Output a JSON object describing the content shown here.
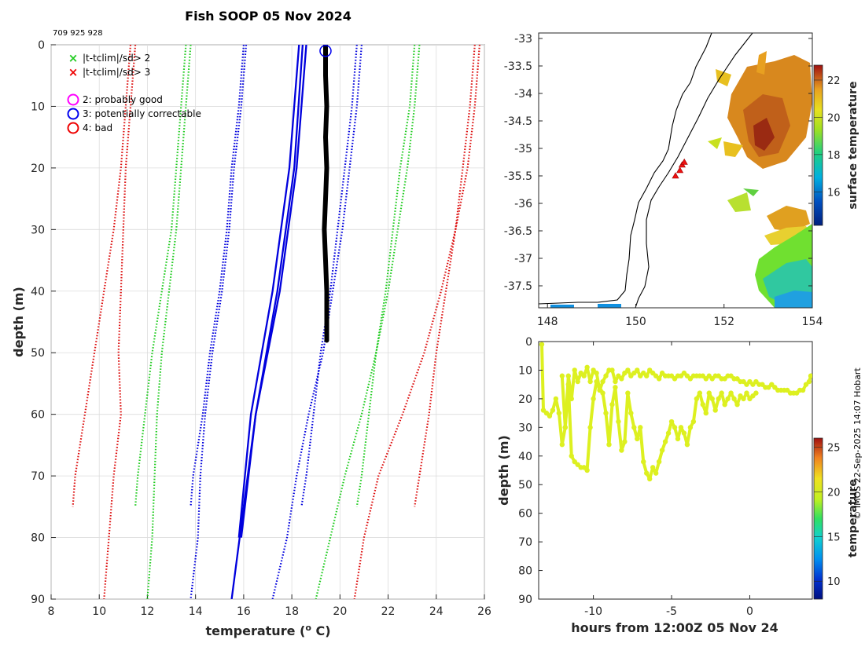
{
  "title": "Fish SOOP 05 Nov 2024",
  "ids": "709 925 928",
  "credit": "© IMOS 22-Sep-2025 14:07 Hobart",
  "legend": [
    {
      "symbol": "x",
      "color": "#22cc22",
      "label": "|t-tclim|/sd> 2"
    },
    {
      "symbol": "x",
      "color": "#ee0000",
      "label": "|t-tclim|/sd> 3"
    },
    {
      "symbol": "o",
      "color": "#ff00ff",
      "label": "2: probably good"
    },
    {
      "symbol": "o",
      "color": "#0000ee",
      "label": "3: potentially correctable"
    },
    {
      "symbol": "o",
      "color": "#ee0000",
      "label": "4: bad"
    }
  ],
  "chart_data": [
    {
      "id": "profile",
      "type": "line",
      "title": "Fish SOOP 05 Nov 2024",
      "xlabel": "temperature (",
      "xlabel_sup": "o",
      "xlabel_end": " C)",
      "ylabel": "depth (m)",
      "xlim": [
        8,
        26
      ],
      "ylim": [
        0,
        90
      ],
      "yreversed": true,
      "xticks": [
        8,
        10,
        12,
        14,
        16,
        18,
        20,
        22,
        24,
        26
      ],
      "yticks": [
        0,
        10,
        20,
        30,
        40,
        50,
        60,
        70,
        80,
        90
      ],
      "series": [
        {
          "name": "clim mean",
          "style": "solid",
          "color": "#0000dd",
          "depth": [
            0,
            20,
            40,
            60,
            80
          ],
          "temp": [
            18.3,
            17.9,
            17.2,
            16.3,
            15.8
          ]
        },
        {
          "name": "clim mean",
          "style": "solid",
          "color": "#0000dd",
          "depth": [
            0,
            20,
            40,
            60,
            80
          ],
          "temp": [
            18.45,
            18.1,
            17.4,
            16.5,
            15.9
          ]
        },
        {
          "name": "clim mean b",
          "style": "solid",
          "color": "#0000dd",
          "depth": [
            0,
            20,
            40,
            60,
            75,
            90
          ],
          "temp": [
            18.6,
            18.2,
            17.5,
            16.5,
            16.0,
            15.5
          ]
        },
        {
          "name": "-2sd",
          "style": "dotted",
          "color": "#0000dd",
          "depth": [
            0,
            10,
            20,
            30,
            40,
            50,
            60,
            70,
            75
          ],
          "temp": [
            16.0,
            15.8,
            15.5,
            15.3,
            15.0,
            14.6,
            14.3,
            13.9,
            13.8
          ]
        },
        {
          "name": "-2sd b",
          "style": "dotted",
          "color": "#0000dd",
          "depth": [
            0,
            10,
            20,
            30,
            40,
            50,
            60,
            70,
            80,
            90
          ],
          "temp": [
            16.1,
            15.9,
            15.6,
            15.4,
            15.1,
            14.7,
            14.4,
            14.2,
            14.1,
            13.8
          ]
        },
        {
          "name": "+2sd",
          "style": "dotted",
          "color": "#0000dd",
          "depth": [
            0,
            10,
            20,
            30,
            40,
            50,
            60,
            70,
            75
          ],
          "temp": [
            20.7,
            20.5,
            20.2,
            19.9,
            19.6,
            19.2,
            18.9,
            18.6,
            18.4
          ]
        },
        {
          "name": "+2sd b",
          "style": "dotted",
          "color": "#0000dd",
          "depth": [
            0,
            10,
            20,
            30,
            40,
            50,
            60,
            70,
            80,
            90
          ],
          "temp": [
            20.9,
            20.7,
            20.4,
            20.1,
            19.7,
            19.3,
            18.7,
            18.2,
            17.8,
            17.2
          ]
        },
        {
          "name": "-3sd",
          "style": "dotted",
          "color": "#22cc22",
          "depth": [
            0,
            10,
            20,
            30,
            40,
            50,
            60,
            70,
            75
          ],
          "temp": [
            13.6,
            13.4,
            13.2,
            13.0,
            12.6,
            12.2,
            11.9,
            11.6,
            11.5
          ]
        },
        {
          "name": "-3sd b",
          "style": "dotted",
          "color": "#22cc22",
          "depth": [
            0,
            10,
            20,
            30,
            40,
            50,
            60,
            70,
            80,
            90
          ],
          "temp": [
            13.8,
            13.6,
            13.4,
            13.2,
            12.9,
            12.6,
            12.4,
            12.3,
            12.2,
            12.0
          ]
        },
        {
          "name": "+3sd",
          "style": "dotted",
          "color": "#22cc22",
          "depth": [
            0,
            10,
            20,
            30,
            40,
            50,
            60,
            70,
            75
          ],
          "temp": [
            23.1,
            22.9,
            22.5,
            22.2,
            21.9,
            21.5,
            21.2,
            20.9,
            20.7
          ]
        },
        {
          "name": "+3sd b",
          "style": "dotted",
          "color": "#22cc22",
          "depth": [
            0,
            10,
            20,
            30,
            40,
            50,
            60,
            70,
            80,
            90
          ],
          "temp": [
            23.3,
            23.1,
            22.8,
            22.4,
            22.0,
            21.5,
            20.9,
            20.2,
            19.6,
            19.0
          ]
        },
        {
          "name": "-4sd",
          "style": "dotted",
          "color": "#dd1111",
          "depth": [
            0,
            10,
            20,
            30,
            40,
            50,
            60,
            70,
            75
          ],
          "temp": [
            11.3,
            11.1,
            10.9,
            10.6,
            10.2,
            9.8,
            9.4,
            9.0,
            8.9
          ]
        },
        {
          "name": "-4sd b",
          "style": "dotted",
          "color": "#dd1111",
          "depth": [
            0,
            10,
            20,
            30,
            40,
            50,
            60,
            70,
            80,
            90
          ],
          "temp": [
            11.5,
            11.3,
            11.1,
            11.0,
            10.9,
            10.8,
            10.9,
            10.6,
            10.4,
            10.2
          ]
        },
        {
          "name": "+4sd",
          "style": "dotted",
          "color": "#dd1111",
          "depth": [
            0,
            10,
            20,
            30,
            40,
            50,
            60,
            70,
            75
          ],
          "temp": [
            25.6,
            25.4,
            25.1,
            24.8,
            24.4,
            24.0,
            23.7,
            23.3,
            23.1
          ]
        },
        {
          "name": "+4sd b",
          "style": "dotted",
          "color": "#dd1111",
          "depth": [
            0,
            10,
            20,
            30,
            40,
            50,
            60,
            70,
            80,
            90
          ],
          "temp": [
            25.8,
            25.6,
            25.3,
            24.8,
            24.2,
            23.5,
            22.6,
            21.6,
            21.0,
            20.6
          ]
        },
        {
          "name": "observed",
          "style": "thick",
          "color": "#000000",
          "depth": [
            0,
            5,
            10,
            15,
            20,
            25,
            30,
            35,
            40,
            45,
            48
          ],
          "temp": [
            19.4,
            19.4,
            19.45,
            19.4,
            19.45,
            19.4,
            19.35,
            19.4,
            19.45,
            19.45,
            19.45
          ]
        }
      ],
      "flag_marker": {
        "temp": 19.4,
        "depth": 1,
        "flag": "3: potentially correctable"
      }
    },
    {
      "id": "map",
      "type": "heatmap",
      "xlim": [
        147.8,
        154
      ],
      "ylim": [
        -37.9,
        -32.9
      ],
      "xticks": [
        148,
        150,
        152,
        154
      ],
      "yticks": [
        -33,
        -33.5,
        -34,
        -34.5,
        -35,
        -35.5,
        -36,
        -36.5,
        -37,
        -37.5
      ],
      "colorbar": {
        "label": "surface temperature",
        "min": 14.2,
        "max": 22.8,
        "ticks": [
          16,
          18,
          20,
          22
        ]
      },
      "track": {
        "lon": [
          150.9,
          151.0,
          151.05,
          151.1
        ],
        "lat": [
          -35.5,
          -35.4,
          -35.3,
          -35.25
        ]
      }
    },
    {
      "id": "timeseries",
      "type": "scatter",
      "xlabel": "hours from 12:00Z 05 Nov 24",
      "ylabel": "depth (m)",
      "xlim": [
        -13.5,
        4
      ],
      "ylim": [
        0,
        90
      ],
      "yreversed": true,
      "xticks": [
        -10,
        -5,
        0
      ],
      "yticks": [
        0,
        10,
        20,
        30,
        40,
        50,
        60,
        70,
        80,
        90
      ],
      "colorbar": {
        "label": "temperature",
        "min": 8,
        "max": 26,
        "ticks": [
          10,
          15,
          20,
          25
        ]
      },
      "point_color": "#ddf020",
      "tracks": [
        {
          "hours": [
            -13.3,
            -13.2,
            -13.0,
            -12.8,
            -12.6,
            -12.4,
            -12.2,
            -12.0,
            -11.8,
            -11.6,
            -11.4,
            -11.2,
            -11.0,
            -10.8,
            -10.6,
            -10.4,
            -10.2,
            -10.0,
            -9.8,
            -9.6,
            -9.4,
            -9.2,
            -9.0,
            -8.8,
            -8.6,
            -8.4,
            -8.2,
            -8.0,
            -7.8,
            -7.6,
            -7.4,
            -7.2,
            -7.0,
            -6.8,
            -6.6,
            -6.4,
            -6.2,
            -6.0,
            -5.8,
            -5.6,
            -5.4,
            -5.2,
            -5.0,
            -4.8,
            -4.6,
            -4.4,
            -4.2,
            -4.0,
            -3.8,
            -3.6,
            -3.4,
            -3.2,
            -3.0,
            -2.8,
            -2.6,
            -2.4,
            -2.2,
            -2.0,
            -1.8,
            -1.6,
            -1.4,
            -1.2,
            -1.0,
            -0.8,
            -0.6,
            -0.4,
            -0.2,
            0.0,
            0.2,
            0.4,
            0.6,
            0.8,
            1.0,
            1.2,
            1.4,
            1.6,
            1.8,
            2.0,
            2.2,
            2.4,
            2.6,
            2.8,
            3.0,
            3.2,
            3.4,
            3.6,
            3.8,
            3.9
          ],
          "depth": [
            1,
            24,
            25,
            26,
            24,
            20,
            25,
            36,
            30,
            12,
            20,
            10,
            14,
            11,
            12,
            9,
            14,
            10,
            11,
            17,
            14,
            12,
            10,
            10,
            14,
            12,
            13,
            11,
            10,
            12,
            11,
            10,
            12,
            11,
            12,
            10,
            11,
            12,
            13,
            11,
            12,
            12,
            12,
            13,
            12,
            12,
            11,
            12,
            13,
            12,
            12,
            12,
            12,
            13,
            12,
            13,
            12,
            12,
            13,
            13,
            12,
            12,
            13,
            13,
            14,
            14,
            15,
            14,
            15,
            14,
            15,
            15,
            16,
            16,
            15,
            16,
            17,
            17,
            17,
            17,
            18,
            18,
            18,
            17,
            17,
            15,
            14,
            12
          ]
        },
        {
          "hours": [
            -12.0,
            -11.8,
            -11.6,
            -11.4,
            -11.2,
            -11.0,
            -10.8,
            -10.6,
            -10.4,
            -10.2,
            -10.0,
            -9.8,
            -9.6,
            -9.4,
            -9.2,
            -9.0,
            -8.8,
            -8.6,
            -8.4,
            -8.2,
            -8.0,
            -7.8,
            -7.6,
            -7.4,
            -7.2,
            -7.0,
            -6.8,
            -6.6,
            -6.4,
            -6.2,
            -6.0,
            -5.8,
            -5.6,
            -5.4,
            -5.2,
            -5.0,
            -4.8,
            -4.6,
            -4.4,
            -4.2,
            -4.0,
            -3.8,
            -3.6,
            -3.4,
            -3.2,
            -3.0,
            -2.8,
            -2.6,
            -2.4,
            -2.2,
            -2.0,
            -1.8,
            -1.6,
            -1.4,
            -1.2,
            -1.0,
            -0.8,
            -0.6,
            -0.4,
            -0.2,
            0.0,
            0.2,
            0.4
          ],
          "depth": [
            12,
            30,
            15,
            40,
            42,
            43,
            44,
            44,
            45,
            30,
            20,
            14,
            16,
            18,
            25,
            36,
            22,
            16,
            28,
            38,
            35,
            18,
            25,
            30,
            34,
            30,
            42,
            46,
            48,
            44,
            46,
            42,
            38,
            35,
            32,
            28,
            30,
            34,
            30,
            32,
            36,
            30,
            28,
            20,
            18,
            22,
            25,
            18,
            20,
            24,
            20,
            18,
            22,
            20,
            18,
            20,
            22,
            19,
            20,
            18,
            20,
            19,
            18
          ]
        }
      ]
    }
  ]
}
